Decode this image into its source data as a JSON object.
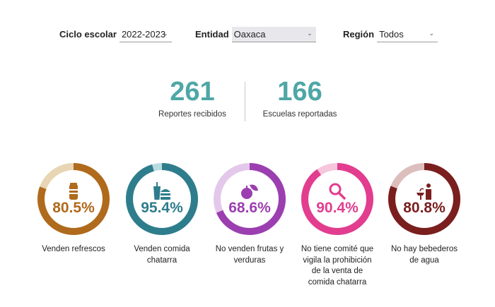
{
  "filters": {
    "ciclo": {
      "label": "Ciclo escolar",
      "value": "2022-2023"
    },
    "entidad": {
      "label": "Entidad",
      "value": "Oaxaca"
    },
    "region": {
      "label": "Región",
      "value": "Todos"
    }
  },
  "stats": {
    "reportes": {
      "value": "261",
      "label": "Reportes recibidos"
    },
    "escuelas": {
      "value": "166",
      "label": "Escuelas reportadas"
    }
  },
  "indicators": [
    {
      "pct_text": "80.5%",
      "value": 80.5,
      "caption_lines": [
        "Venden refrescos"
      ],
      "icon": "soda-can-icon",
      "color": "#b06a1c",
      "track": "#e8d5b3"
    },
    {
      "pct_text": "95.4%",
      "value": 95.4,
      "caption_lines": [
        "Venden comida",
        "chatarra"
      ],
      "icon": "burger-drink-icon",
      "color": "#2e7d8c",
      "track": "#b9dbe0"
    },
    {
      "pct_text": "68.6%",
      "value": 68.6,
      "caption_lines": [
        "No venden frutas y",
        "verduras"
      ],
      "icon": "fruits-icon",
      "color": "#9b3fb0",
      "track": "#e3c8eb"
    },
    {
      "pct_text": "90.4%",
      "value": 90.4,
      "caption_lines": [
        "No tiene comité que",
        "vigila la prohibición",
        "de la venta de",
        "comida chatarra"
      ],
      "icon": "magnifier-icon",
      "color": "#e23d8f",
      "track": "#f6c6dd"
    },
    {
      "pct_text": "80.8%",
      "value": 80.8,
      "caption_lines": [
        "No hay bebederos",
        "de agua"
      ],
      "icon": "water-fountain-icon",
      "color": "#7a1e1e",
      "track": "#dcbfbd"
    }
  ]
}
